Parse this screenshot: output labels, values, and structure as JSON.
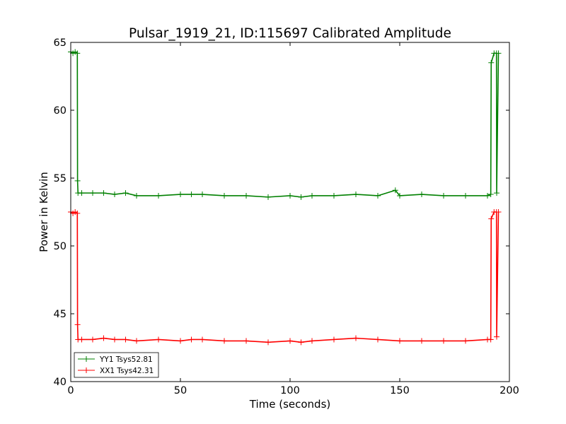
{
  "chart_data": {
    "type": "line",
    "title": "Pulsar_1919_21, ID:115697 Calibrated Amplitude",
    "xlabel": "Time (seconds)",
    "ylabel": "Power in Kelvin",
    "xlim": [
      0,
      200
    ],
    "ylim": [
      40,
      65
    ],
    "xticks": [
      0,
      50,
      100,
      150,
      200
    ],
    "yticks": [
      40,
      45,
      50,
      55,
      60,
      65
    ],
    "xtick_labels": [
      "0",
      "50",
      "100",
      "150",
      "200"
    ],
    "ytick_labels": [
      "40",
      "45",
      "50",
      "55",
      "60",
      "65"
    ],
    "grid": false,
    "legend_position": "lower-left",
    "series": [
      {
        "name": "YY1 Tsys52.81",
        "color": "#008000",
        "marker": "+",
        "x": [
          0,
          1,
          2,
          3,
          3.1,
          3.3,
          5,
          10,
          15,
          20,
          25,
          30,
          40,
          50,
          55,
          60,
          70,
          80,
          90,
          100,
          105,
          110,
          120,
          130,
          140,
          148,
          150,
          160,
          170,
          180,
          190,
          191.5,
          191.7,
          193,
          194.1,
          194.2,
          195
        ],
        "y": [
          64.3,
          64.2,
          64.3,
          64.2,
          54.8,
          53.9,
          53.9,
          53.9,
          53.9,
          53.8,
          53.9,
          53.7,
          53.7,
          53.8,
          53.8,
          53.8,
          53.7,
          53.7,
          53.6,
          53.7,
          53.6,
          53.7,
          53.7,
          53.8,
          53.7,
          54.1,
          53.7,
          53.8,
          53.7,
          53.7,
          53.7,
          53.8,
          63.5,
          64.2,
          64.2,
          53.9,
          64.2
        ]
      },
      {
        "name": "XX1 Tsys42.31",
        "color": "#ff0000",
        "marker": "+",
        "x": [
          0,
          1,
          2,
          3,
          3.1,
          3.3,
          5,
          10,
          15,
          20,
          25,
          30,
          40,
          50,
          55,
          60,
          70,
          80,
          90,
          100,
          105,
          110,
          120,
          130,
          140,
          150,
          160,
          170,
          180,
          190,
          191.5,
          191.7,
          193,
          194.1,
          194.2,
          195
        ],
        "y": [
          52.5,
          52.4,
          52.5,
          52.4,
          44.2,
          43.1,
          43.1,
          43.1,
          43.2,
          43.1,
          43.1,
          43.0,
          43.1,
          43.0,
          43.1,
          43.1,
          43.0,
          43.0,
          42.9,
          43.0,
          42.9,
          43.0,
          43.1,
          43.2,
          43.1,
          43.0,
          43.0,
          43.0,
          43.0,
          43.1,
          43.1,
          52.0,
          52.5,
          52.5,
          43.3,
          52.5
        ]
      }
    ]
  }
}
